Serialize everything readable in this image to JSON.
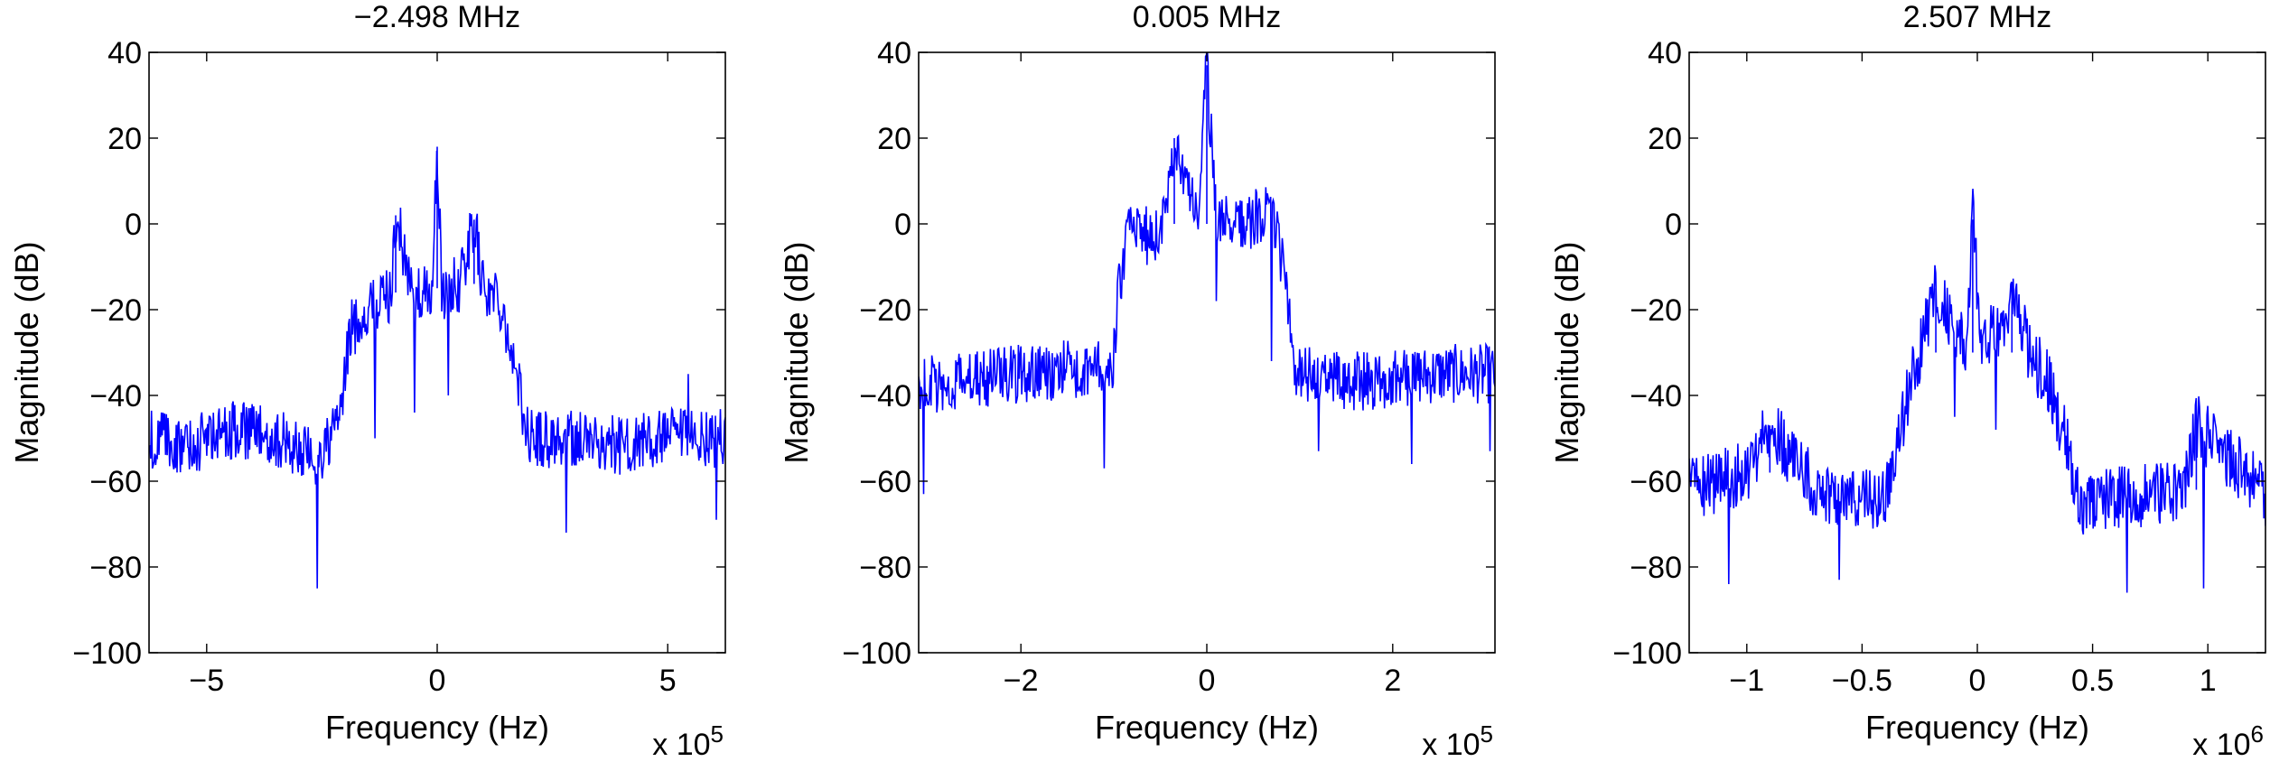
{
  "chart_data": [
    {
      "type": "line",
      "title": "−2.498 MHz",
      "xlabel": "Frequency (Hz)",
      "ylabel": "Magnitude (dB)",
      "x_multiplier": {
        "base": "x 10",
        "exp": "5"
      },
      "xlim": [
        -6.25,
        6.25
      ],
      "ylim": [
        -100,
        40
      ],
      "xticks": [
        -5,
        0,
        5
      ],
      "xtick_labels": [
        "−5",
        "0",
        "5"
      ],
      "yticks": [
        -100,
        -80,
        -60,
        -40,
        -20,
        0,
        20,
        40
      ],
      "ytick_labels": [
        "−100",
        "−80",
        "−60",
        "−40",
        "−20",
        "0",
        "20",
        "40"
      ],
      "grid": false,
      "series": [
        {
          "color": "#0000ff",
          "x": [
            -6.25,
            -5.5,
            -4.5,
            -3.5,
            -2.6,
            -2.3,
            -2.05,
            -1.9,
            -1.5,
            -1.0,
            -0.9,
            -0.5,
            -0.1,
            0,
            0.1,
            0.5,
            0.8,
            1.0,
            1.4,
            1.7,
            2.0,
            3.0,
            4.0,
            5.0,
            6.25
          ],
          "y": [
            -50,
            -52,
            -48,
            -50,
            -55,
            -50,
            -42,
            -25,
            -20,
            -16,
            2,
            -18,
            -15,
            18,
            -16,
            -14,
            1,
            -15,
            -18,
            -35,
            -50,
            -50,
            -52,
            -50,
            -50
          ],
          "noise": 14,
          "spikes": [
            [
              -2.6,
              -85
            ],
            [
              -1.35,
              -50
            ],
            [
              -0.5,
              -44
            ],
            [
              0.25,
              -40
            ],
            [
              2.8,
              -72
            ],
            [
              6.05,
              -69
            ],
            [
              5.45,
              -35
            ]
          ]
        }
      ]
    },
    {
      "type": "line",
      "title": "0.005 MHz",
      "xlabel": "Frequency (Hz)",
      "ylabel": "Magnitude (dB)",
      "x_multiplier": {
        "base": "x 10",
        "exp": "5"
      },
      "xlim": [
        -3.1,
        3.1
      ],
      "ylim": [
        -100,
        40
      ],
      "xticks": [
        -2,
        0,
        2
      ],
      "xtick_labels": [
        "−2",
        "0",
        "2"
      ],
      "yticks": [
        -100,
        -80,
        -60,
        -40,
        -20,
        0,
        20,
        40
      ],
      "ytick_labels": [
        "−100",
        "−80",
        "−60",
        "−40",
        "−20",
        "0",
        "20",
        "40"
      ],
      "grid": false,
      "series": [
        {
          "color": "#0000ff",
          "x": [
            -3.1,
            -2.5,
            -1.5,
            -1.0,
            -0.95,
            -0.85,
            -0.5,
            -0.35,
            -0.1,
            0,
            0.1,
            0.3,
            0.7,
            0.85,
            0.95,
            1.5,
            2.5,
            3.1
          ],
          "y": [
            -38,
            -36,
            -34,
            -32,
            -15,
            -2,
            -3,
            20,
            0,
            37,
            0,
            0,
            2,
            -12,
            -35,
            -37,
            -35,
            -35
          ],
          "noise": 14,
          "spikes": [
            [
              -3.05,
              -63
            ],
            [
              -1.1,
              -57
            ],
            [
              0.1,
              -18
            ],
            [
              0.7,
              -32
            ],
            [
              2.2,
              -56
            ],
            [
              3.05,
              -53
            ],
            [
              1.2,
              -53
            ]
          ]
        }
      ]
    },
    {
      "type": "line",
      "title": "2.507 MHz",
      "xlabel": "Frequency (Hz)",
      "ylabel": "Magnitude (dB)",
      "x_multiplier": {
        "base": "x 10",
        "exp": "6"
      },
      "xlim": [
        -1.25,
        1.25
      ],
      "ylim": [
        -100,
        40
      ],
      "xticks": [
        -1,
        -0.5,
        0,
        0.5,
        1
      ],
      "xtick_labels": [
        "−1",
        "−0.5",
        "0",
        "0.5",
        "1"
      ],
      "yticks": [
        -100,
        -80,
        -60,
        -40,
        -20,
        0,
        20,
        40
      ],
      "ytick_labels": [
        "−100",
        "−80",
        "−60",
        "−40",
        "−20",
        "0",
        "20",
        "40"
      ],
      "grid": false,
      "series": [
        {
          "color": "#0000ff",
          "x": [
            -1.25,
            -1.0,
            -0.9,
            -0.7,
            -0.4,
            -0.35,
            -0.3,
            -0.18,
            -0.05,
            -0.02,
            0.02,
            0.15,
            0.25,
            0.3,
            0.38,
            0.45,
            0.9,
            0.95,
            1.25
          ],
          "y": [
            -62,
            -58,
            -47,
            -62,
            -65,
            -52,
            -40,
            -15,
            -30,
            1,
            -30,
            -18,
            -33,
            -35,
            -50,
            -65,
            -62,
            -47,
            -63
          ],
          "noise": 15,
          "spikes": [
            [
              -1.08,
              -84
            ],
            [
              -0.6,
              -83
            ],
            [
              0.65,
              -86
            ],
            [
              0.98,
              -85
            ],
            [
              -0.1,
              -45
            ],
            [
              0.08,
              -48
            ]
          ]
        }
      ]
    }
  ]
}
